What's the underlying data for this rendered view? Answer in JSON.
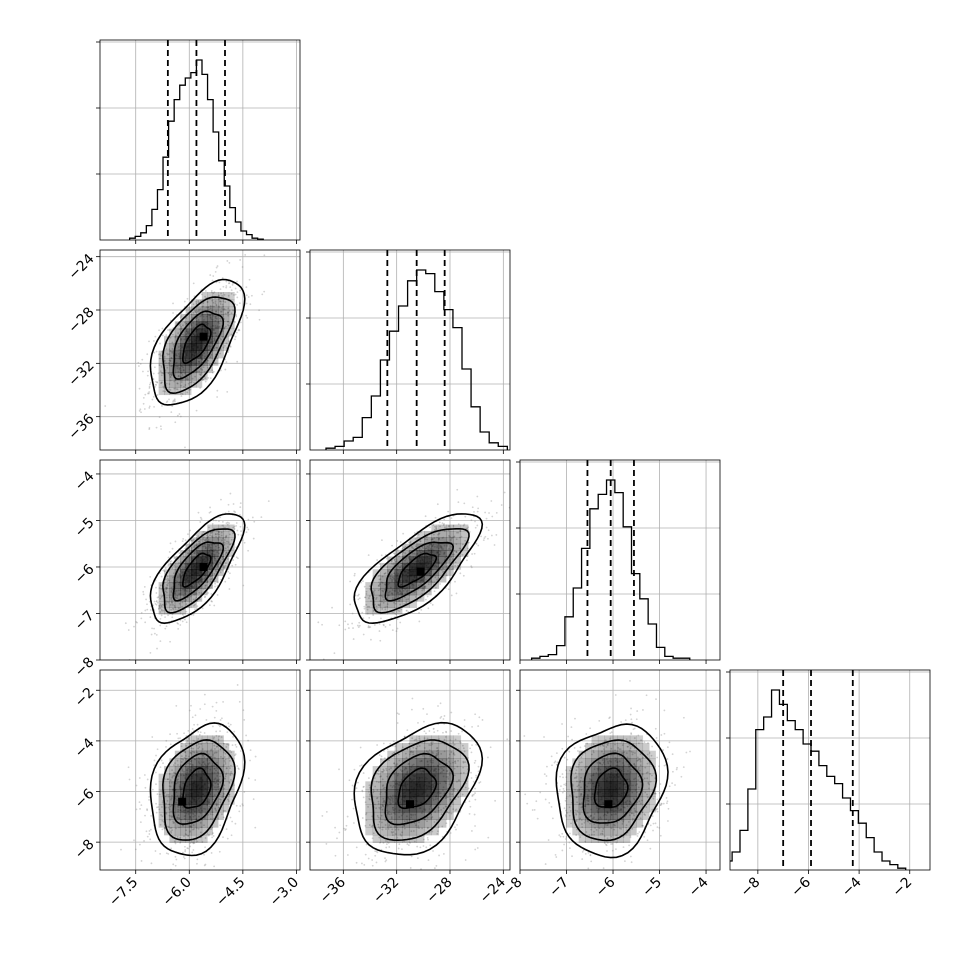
{
  "chart_data": {
    "type": "corner",
    "grid": true,
    "colors": {
      "axes": "#000000",
      "grid": "#b0b0b0",
      "density": "#000000",
      "points": "#808080"
    },
    "params": [
      {
        "range": [
          -8.5,
          -2.9
        ],
        "ticks": [
          -7.5,
          -6.0,
          -4.5,
          -3.0
        ],
        "tick_labels": [
          "−7.5",
          "−6.0",
          "−4.5",
          "−3.0"
        ],
        "quantiles": [
          -6.6,
          -5.8,
          -5.0
        ],
        "mean": -5.8,
        "sd": 0.55
      },
      {
        "range": [
          -38.5,
          -23.5
        ],
        "ticks": [
          -36,
          -32,
          -28,
          -24
        ],
        "tick_labels": [
          "−36",
          "−32",
          "−28",
          "−24"
        ],
        "quantiles": [
          -32.7,
          -30.5,
          -28.4
        ],
        "mean": -30.5,
        "sd": 2.0
      },
      {
        "range": [
          -8,
          -3.7
        ],
        "ticks": [
          -8,
          -7,
          -6,
          -5,
          -4
        ],
        "tick_labels": [
          "−8",
          "−7",
          "−6",
          "−5",
          "−4"
        ],
        "quantiles": [
          -6.55,
          -6.05,
          -5.55
        ],
        "mean": -6.05,
        "sd": 0.5
      },
      {
        "range": [
          -9.1,
          -1.2
        ],
        "ticks": [
          -8,
          -6,
          -4,
          -2
        ],
        "tick_labels": [
          "−8",
          "−6",
          "−4",
          "−2"
        ],
        "quantiles": [
          -7.0,
          -5.9,
          -4.25
        ],
        "mean": -5.9,
        "sd": 1.1
      }
    ],
    "hist_bins": {
      "0": [
        0.01,
        0.02,
        0.04,
        0.08,
        0.17,
        0.28,
        0.46,
        0.66,
        0.78,
        0.86,
        0.9,
        0.93,
        1.0,
        0.92,
        0.78,
        0.6,
        0.44,
        0.3,
        0.18,
        0.1,
        0.05,
        0.03,
        0.01,
        0.005
      ],
      "1": [
        0.01,
        0.02,
        0.05,
        0.07,
        0.18,
        0.3,
        0.5,
        0.66,
        0.8,
        0.94,
        1.0,
        0.98,
        0.88,
        0.78,
        0.68,
        0.45,
        0.24,
        0.1,
        0.04,
        0.02
      ],
      "2": [
        0.01,
        0.02,
        0.03,
        0.08,
        0.24,
        0.4,
        0.62,
        0.84,
        0.92,
        1.0,
        0.93,
        0.74,
        0.48,
        0.34,
        0.2,
        0.07,
        0.02,
        0.01,
        0.01
      ],
      "3": [
        0.03,
        0.05,
        0.1,
        0.22,
        0.45,
        0.78,
        0.85,
        1.0,
        0.92,
        0.83,
        0.78,
        0.7,
        0.66,
        0.58,
        0.52,
        0.48,
        0.4,
        0.33,
        0.26,
        0.18,
        0.1,
        0.05,
        0.03,
        0.01
      ]
    },
    "pairs": [
      {
        "x": 0,
        "y": 1,
        "corr": 0.6,
        "peak": [
          -5.6,
          -30.0
        ]
      },
      {
        "x": 0,
        "y": 2,
        "corr": 0.7,
        "peak": [
          -5.6,
          -6.0
        ]
      },
      {
        "x": 1,
        "y": 2,
        "corr": 0.72,
        "peak": [
          -30.2,
          -6.1
        ]
      },
      {
        "x": 0,
        "y": 3,
        "corr": 0.3,
        "peak": [
          -6.2,
          -6.4
        ]
      },
      {
        "x": 1,
        "y": 3,
        "corr": 0.35,
        "peak": [
          -31.0,
          -6.5
        ]
      },
      {
        "x": 2,
        "y": 3,
        "corr": 0.15,
        "peak": [
          -6.1,
          -6.5
        ]
      }
    ],
    "contour_levels": [
      0.12,
      0.3,
      0.55,
      0.85
    ]
  }
}
